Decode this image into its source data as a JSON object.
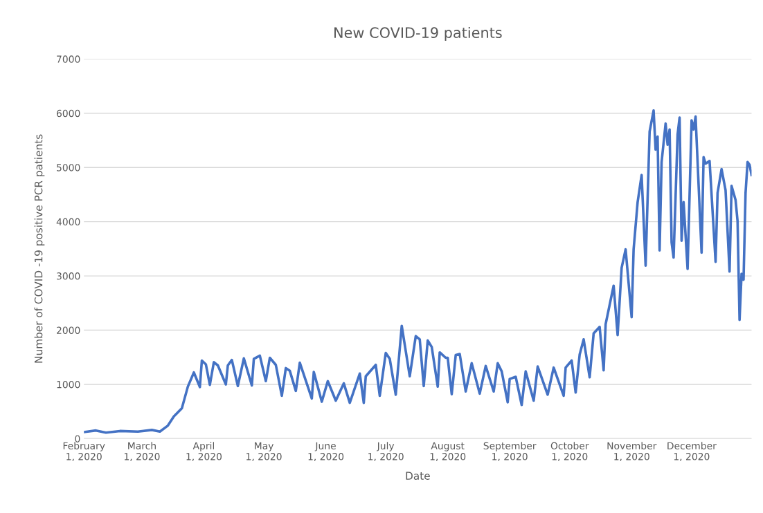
{
  "chart_data": {
    "type": "line",
    "title": "New COVID-19 patients",
    "xlabel": "Date",
    "ylabel": "Number of COVID -19 positive PCR patients",
    "x": [
      "2020-02-01",
      "2020-02-07",
      "2020-02-12",
      "2020-02-19",
      "2020-02-28",
      "2020-03-06",
      "2020-03-10",
      "2020-03-14",
      "2020-03-17",
      "2020-03-21",
      "2020-03-24",
      "2020-03-27",
      "2020-03-30",
      "2020-03-31",
      "2020-04-02",
      "2020-04-04",
      "2020-04-06",
      "2020-04-08",
      "2020-04-12",
      "2020-04-13",
      "2020-04-15",
      "2020-04-18",
      "2020-04-21",
      "2020-04-25",
      "2020-04-26",
      "2020-04-29",
      "2020-05-02",
      "2020-05-04",
      "2020-05-07",
      "2020-05-10",
      "2020-05-12",
      "2020-05-14",
      "2020-05-17",
      "2020-05-19",
      "2020-05-25",
      "2020-05-26",
      "2020-05-30",
      "2020-06-02",
      "2020-06-06",
      "2020-06-10",
      "2020-06-13",
      "2020-06-18",
      "2020-06-20",
      "2020-06-21",
      "2020-06-26",
      "2020-06-28",
      "2020-07-01",
      "2020-07-03",
      "2020-07-06",
      "2020-07-09",
      "2020-07-13",
      "2020-07-16",
      "2020-07-18",
      "2020-07-20",
      "2020-07-22",
      "2020-07-24",
      "2020-07-27",
      "2020-07-28",
      "2020-07-31",
      "2020-08-01",
      "2020-08-03",
      "2020-08-05",
      "2020-08-07",
      "2020-08-10",
      "2020-08-13",
      "2020-08-17",
      "2020-08-20",
      "2020-08-24",
      "2020-08-26",
      "2020-08-28",
      "2020-08-31",
      "2020-09-01",
      "2020-09-04",
      "2020-09-07",
      "2020-09-09",
      "2020-09-13",
      "2020-09-15",
      "2020-09-20",
      "2020-09-23",
      "2020-09-28",
      "2020-09-29",
      "2020-10-02",
      "2020-10-04",
      "2020-10-06",
      "2020-10-08",
      "2020-10-11",
      "2020-10-13",
      "2020-10-16",
      "2020-10-18",
      "2020-10-19",
      "2020-10-23",
      "2020-10-25",
      "2020-10-27",
      "2020-10-29",
      "2020-11-01",
      "2020-11-02",
      "2020-11-04",
      "2020-11-06",
      "2020-11-08",
      "2020-11-10",
      "2020-11-12",
      "2020-11-13",
      "2020-11-14",
      "2020-11-15",
      "2020-11-16",
      "2020-11-18",
      "2020-11-19",
      "2020-11-20",
      "2020-11-21",
      "2020-11-22",
      "2020-11-24",
      "2020-11-25",
      "2020-11-26",
      "2020-11-27",
      "2020-11-29",
      "2020-12-01",
      "2020-12-02",
      "2020-12-03",
      "2020-12-06",
      "2020-12-07",
      "2020-12-08",
      "2020-12-10",
      "2020-12-13",
      "2020-12-14",
      "2020-12-16",
      "2020-12-18",
      "2020-12-20",
      "2020-12-21",
      "2020-12-23",
      "2020-12-24",
      "2020-12-25",
      "2020-12-26",
      "2020-12-27",
      "2020-12-28",
      "2020-12-29",
      "2020-12-30",
      "2020-12-31"
    ],
    "series": [
      {
        "color": "#4472c4",
        "values": [
          120,
          150,
          110,
          140,
          130,
          160,
          130,
          240,
          410,
          560,
          960,
          1220,
          950,
          1440,
          1370,
          990,
          1410,
          1350,
          1000,
          1350,
          1450,
          970,
          1480,
          980,
          1470,
          1530,
          1060,
          1490,
          1360,
          790,
          1300,
          1250,
          880,
          1400,
          740,
          1230,
          680,
          1060,
          700,
          1020,
          660,
          1200,
          660,
          1150,
          1360,
          790,
          1580,
          1470,
          810,
          2080,
          1150,
          1890,
          1830,
          970,
          1810,
          1690,
          960,
          1590,
          1490,
          1490,
          820,
          1540,
          1560,
          870,
          1390,
          830,
          1340,
          870,
          1390,
          1240,
          670,
          1100,
          1140,
          620,
          1240,
          700,
          1330,
          810,
          1310,
          790,
          1310,
          1440,
          850,
          1550,
          1830,
          1130,
          1940,
          2060,
          1260,
          2110,
          2820,
          1910,
          3150,
          3490,
          2240,
          3490,
          4360,
          4860,
          3190,
          5660,
          6050,
          5330,
          5570,
          3470,
          5100,
          5810,
          5420,
          5700,
          3620,
          3340,
          5610,
          5920,
          3650,
          4360,
          3130,
          5870,
          5700,
          5940,
          3430,
          5190,
          5070,
          5120,
          3260,
          4530,
          4970,
          4580,
          3080,
          4660,
          4400,
          4010,
          2190,
          3040,
          2930,
          4530,
          5100,
          5050,
          4860
        ]
      }
    ],
    "xlim": [
      "2020-02-01",
      "2020-12-31"
    ],
    "xticks": [
      {
        "value": "2020-02-01",
        "label": "February 1, 2020"
      },
      {
        "value": "2020-03-01",
        "label": "March 1, 2020"
      },
      {
        "value": "2020-04-01",
        "label": "April 1, 2020"
      },
      {
        "value": "2020-05-01",
        "label": "May 1, 2020"
      },
      {
        "value": "2020-06-01",
        "label": "June 1, 2020"
      },
      {
        "value": "2020-07-01",
        "label": "July 1, 2020"
      },
      {
        "value": "2020-08-01",
        "label": "August 1, 2020"
      },
      {
        "value": "2020-09-01",
        "label": "September 1, 2020"
      },
      {
        "value": "2020-10-01",
        "label": "October 1, 2020"
      },
      {
        "value": "2020-11-01",
        "label": "November 1, 2020"
      },
      {
        "value": "2020-12-01",
        "label": "December 1, 2020"
      }
    ],
    "ylim": [
      0,
      7000
    ],
    "yticks": [
      0,
      1000,
      2000,
      3000,
      4000,
      5000,
      6000,
      7000
    ],
    "grid": "y",
    "legend": false
  }
}
